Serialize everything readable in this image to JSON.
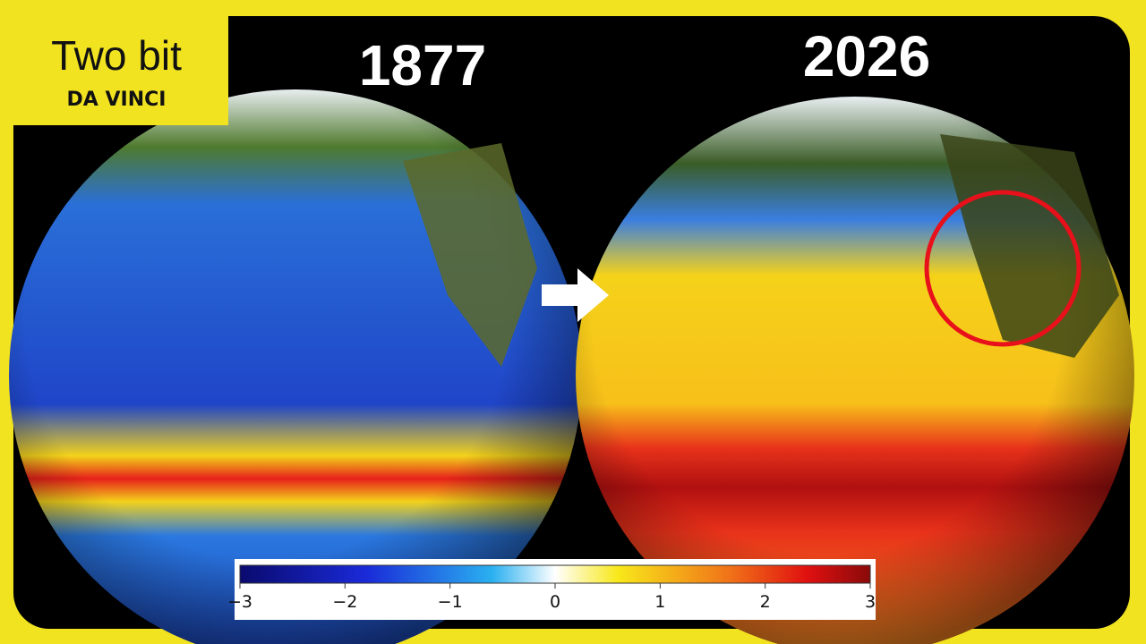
{
  "logo": {
    "title": "Two bit",
    "subtitle": "DA VINCI"
  },
  "panels": [
    {
      "label": "1877"
    },
    {
      "label": "2026"
    }
  ],
  "colorbar": {
    "lim": [
      -3,
      3
    ],
    "ticks": [
      {
        "value": -3,
        "label": "−3"
      },
      {
        "value": -2,
        "label": "−2"
      },
      {
        "value": -1,
        "label": "−1"
      },
      0,
      1,
      2,
      3
    ]
  }
}
